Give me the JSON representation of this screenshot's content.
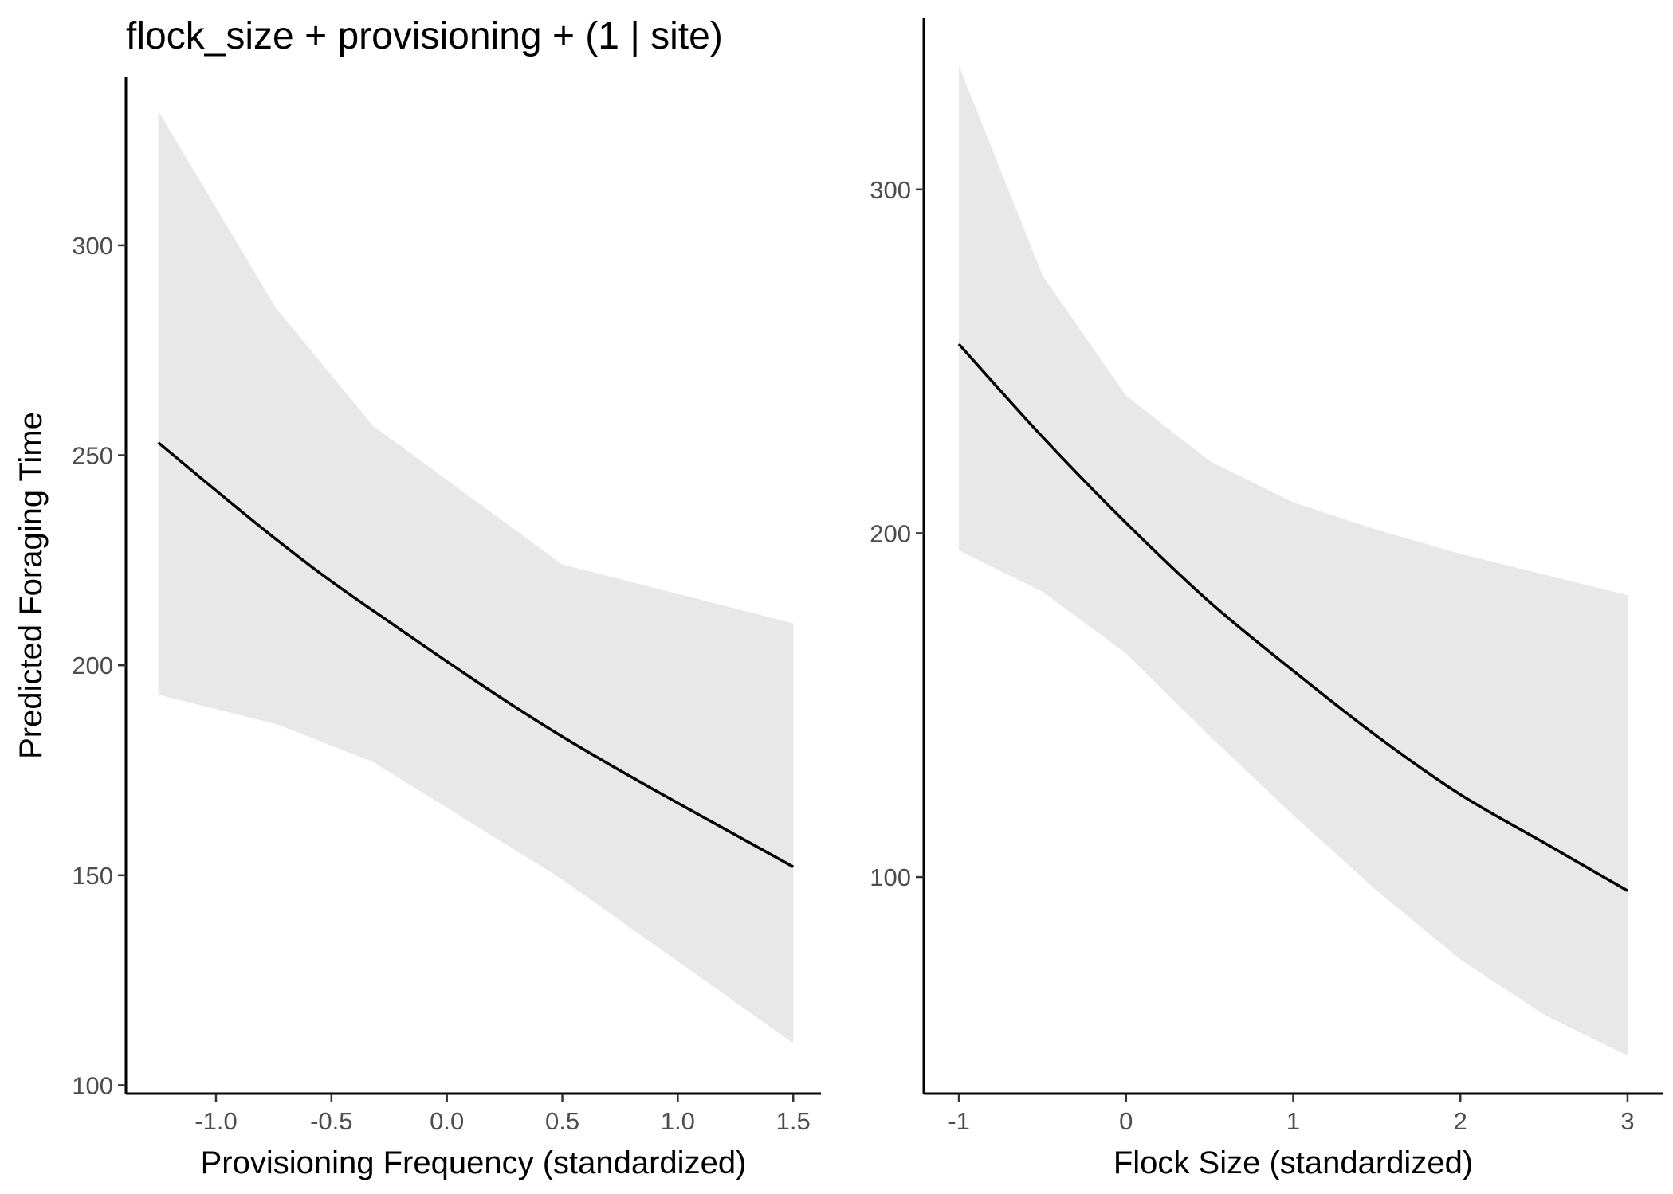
{
  "title": "flock_size + provisioning + (1 | site)",
  "colors": {
    "ribbon": "#e8e8e8",
    "line": "#000000",
    "axis": "#000000",
    "tick_text": "#4d4d4d"
  },
  "chart_data": [
    {
      "type": "line",
      "panel": "left",
      "xlabel": "Provisioning Frequency (standardized)",
      "ylabel": "Predicted Foraging Time",
      "xlim": [
        -1.39,
        1.62
      ],
      "ylim": [
        98,
        340
      ],
      "xticks": [
        -1.0,
        -0.5,
        0.0,
        0.5,
        1.0,
        1.5
      ],
      "xtick_labels": [
        "-1.0",
        "-0.5",
        "0.0",
        "0.5",
        "1.0",
        "1.5"
      ],
      "yticks": [
        100,
        150,
        200,
        250,
        300
      ],
      "ytick_labels": [
        "100",
        "150",
        "200",
        "250",
        "300"
      ],
      "grid": false,
      "x": [
        -1.25,
        -0.74,
        -0.32,
        0.5,
        1.5
      ],
      "y": [
        253,
        230,
        213,
        183,
        152
      ],
      "lower": [
        193,
        186,
        177,
        149,
        110
      ],
      "upper": [
        332,
        285,
        257,
        224,
        210
      ]
    },
    {
      "type": "line",
      "panel": "right",
      "xlabel": "Flock Size (standardized)",
      "ylabel": "",
      "xlim": [
        -1.21,
        3.21
      ],
      "ylim": [
        37,
        350
      ],
      "xticks": [
        -1,
        0,
        1,
        2,
        3
      ],
      "xtick_labels": [
        "-1",
        "0",
        "1",
        "2",
        "3"
      ],
      "yticks": [
        100,
        200,
        300
      ],
      "ytick_labels": [
        "100",
        "200",
        "300"
      ],
      "grid": false,
      "x": [
        -1.0,
        -0.5,
        0.0,
        0.5,
        1.0,
        1.5,
        2.0,
        2.5,
        3.0
      ],
      "y": [
        255,
        228,
        203,
        180,
        160,
        141,
        124,
        110,
        96
      ],
      "lower": [
        195,
        183,
        165,
        141,
        118,
        96,
        76,
        60,
        48
      ],
      "upper": [
        336,
        275,
        240,
        221,
        209,
        201,
        194,
        188,
        182
      ]
    }
  ]
}
